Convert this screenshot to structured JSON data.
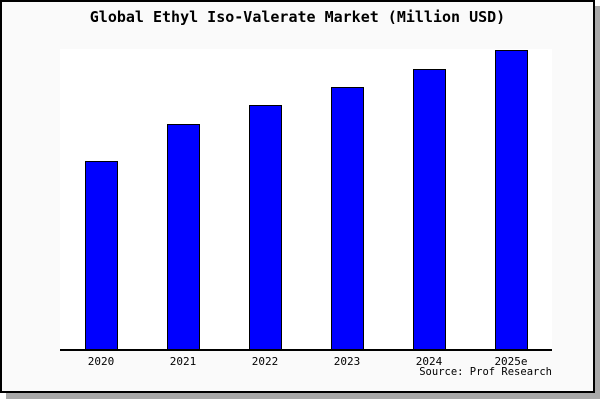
{
  "window": {
    "background_color": "#fafafa",
    "plot_background_color": "#ffffff",
    "border_color": "#000000",
    "shadow_color": "#a9a9a9"
  },
  "title": "Global Ethyl Iso-Valerate Market (Million USD)",
  "source_note": "Source: Prof Research",
  "chart_data": {
    "type": "bar",
    "title": "Global Ethyl Iso-Valerate Market (Million USD)",
    "categories": [
      "2020",
      "2021",
      "2022",
      "2023",
      "2024",
      "2025e"
    ],
    "values": [
      62.8,
      74.9,
      81.2,
      87.2,
      93.4,
      99.8
    ],
    "value_note": "y-axis has no tick labels or gridlines in the image; values are bar heights as % of plot height (2025e ≈ full height)",
    "xlabel": "",
    "ylabel": "",
    "ylim": [
      0,
      100
    ],
    "grid": false,
    "legend": null,
    "bar_color": "#0000ff",
    "bar_edge_color": "#000000",
    "source": "Source: Prof Research"
  }
}
